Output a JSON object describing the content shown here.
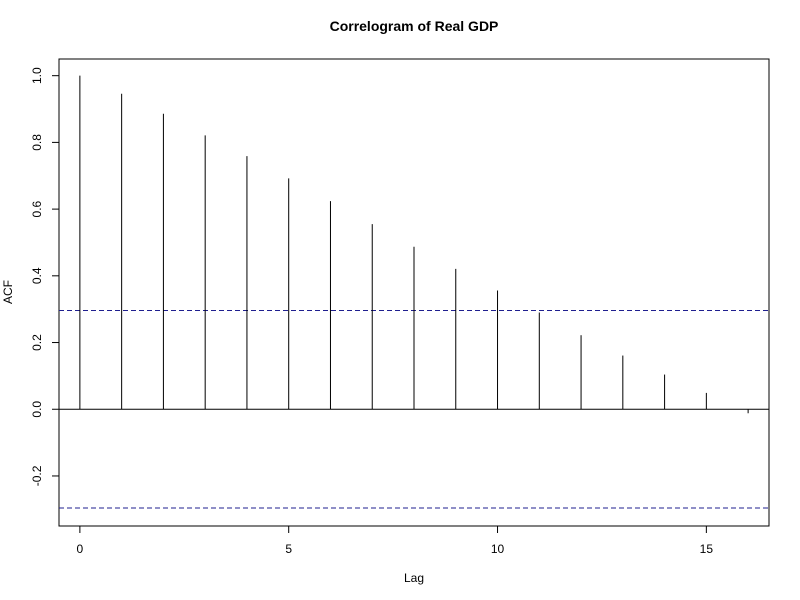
{
  "chart_data": {
    "type": "bar",
    "title": "Correlogram of Real GDP",
    "xlabel": "Lag",
    "ylabel": "ACF",
    "xlim": [
      -0.5,
      16.5
    ],
    "ylim": [
      -0.35,
      1.05
    ],
    "x_ticks": [
      0,
      5,
      10,
      15
    ],
    "x_tick_labels": [
      "0",
      "5",
      "10",
      "15"
    ],
    "y_ticks": [
      -0.2,
      0.0,
      0.2,
      0.4,
      0.6,
      0.8,
      1.0
    ],
    "y_tick_labels": [
      "-0.2",
      "0.0",
      "0.2",
      "0.4",
      "0.6",
      "0.8",
      "1.0"
    ],
    "lags": [
      0,
      1,
      2,
      3,
      4,
      5,
      6,
      7,
      8,
      9,
      10,
      11,
      12,
      13,
      14,
      15,
      16
    ],
    "acf": [
      1.0,
      0.946,
      0.886,
      0.821,
      0.759,
      0.692,
      0.624,
      0.555,
      0.487,
      0.421,
      0.356,
      0.29,
      0.222,
      0.161,
      0.104,
      0.049,
      -0.012
    ],
    "confidence_bound": 0.296,
    "grid": false,
    "colors": {
      "bars": "#000000",
      "confidence": "#1f1f8f"
    }
  }
}
